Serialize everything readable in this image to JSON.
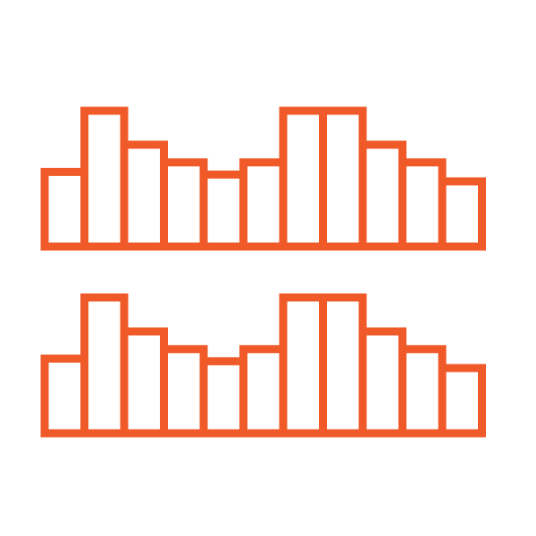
{
  "icon": {
    "name": "dual-bar-histogram-icon",
    "stroke_color": "#F05A28",
    "background_color": "#FFFFFF",
    "bar_count_per_row": 11,
    "relative_bar_heights": [
      0.55,
      1.0,
      0.75,
      0.62,
      0.53,
      0.62,
      1.0,
      1.0,
      0.75,
      0.62,
      0.48
    ]
  }
}
